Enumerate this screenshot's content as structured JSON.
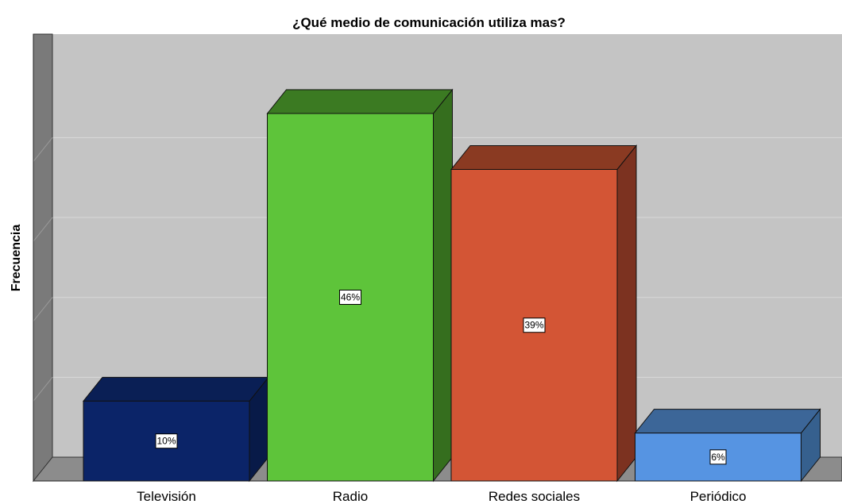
{
  "chart_data": {
    "type": "bar",
    "title": "¿Qué medio de comunicación utiliza mas?",
    "ylabel": "Frecuencia",
    "xlabel": "",
    "categories": [
      "Televisión",
      "Radio",
      "Redes sociales",
      "Periódico"
    ],
    "values": [
      10,
      46,
      39,
      6
    ],
    "data_labels": [
      "10%",
      "46%",
      "39%",
      "6%"
    ],
    "ylim": [
      0,
      46
    ],
    "grid": true,
    "three_d": true,
    "colors": {
      "bars": [
        "#0b2468",
        "#5ec43a",
        "#d35535",
        "#5694e2"
      ],
      "bar_tops": [
        "#0a1f55",
        "#3b7a22",
        "#8a3a22",
        "#3c6698"
      ],
      "bar_sides": [
        "#081a48",
        "#356e1e",
        "#7c3220",
        "#36608e"
      ],
      "plot_back": "#c4c4c4",
      "wall": "#7a7a7a",
      "floor": "#8c8c8c",
      "gridline": "#d8d8d8"
    }
  }
}
